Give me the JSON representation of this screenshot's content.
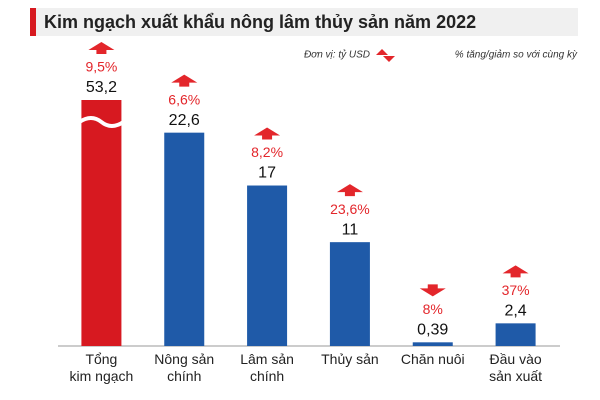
{
  "chart_data": {
    "type": "bar",
    "title": "Kim ngạch xuất khẩu nông lâm thủy sản năm 2022",
    "unit_note": "Đơn vị: tỷ USD",
    "change_legend": "% tăng/giảm so với cùng kỳ",
    "categories": [
      "Tổng\nkim ngạch",
      "Nông sản\nchính",
      "Lâm sản\nchính",
      "Thủy sản",
      "Chăn nuôi",
      "Đầu vào\nsản xuất"
    ],
    "values": [
      53.2,
      22.6,
      17,
      11,
      0.39,
      2.4
    ],
    "value_labels": [
      "53,2",
      "22,6",
      "17",
      "11",
      "0,39",
      "2,4"
    ],
    "changes": [
      9.5,
      6.6,
      8.2,
      23.6,
      -8,
      37
    ],
    "change_labels": [
      "9,5%",
      "6,6%",
      "8,2%",
      "23,6%",
      "8%",
      "37%"
    ],
    "colors": [
      "#d71920",
      "#1f5aa8",
      "#1f5aa8",
      "#1f5aa8",
      "#1f5aa8",
      "#1f5aa8"
    ],
    "change_color": "#e3262b",
    "ylim": [
      0,
      25
    ],
    "axis_break": true
  }
}
